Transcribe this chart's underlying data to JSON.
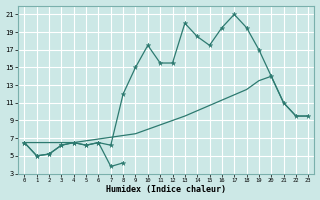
{
  "xlabel": "Humidex (Indice chaleur)",
  "xlim": [
    -0.5,
    23.5
  ],
  "ylim": [
    3,
    22
  ],
  "yticks": [
    3,
    5,
    7,
    9,
    11,
    13,
    15,
    17,
    19,
    21
  ],
  "xticks": [
    0,
    1,
    2,
    3,
    4,
    5,
    6,
    7,
    8,
    9,
    10,
    11,
    12,
    13,
    14,
    15,
    16,
    17,
    18,
    19,
    20,
    21,
    22,
    23
  ],
  "bg_color": "#cce8e6",
  "grid_color": "#ffffff",
  "line_color": "#2d7a70",
  "series_upper": {
    "x": [
      0,
      1,
      2,
      3,
      4,
      5,
      6,
      7,
      8,
      9,
      10,
      11,
      12,
      13,
      14,
      15,
      16,
      17,
      18,
      19,
      20,
      21,
      22,
      23
    ],
    "y": [
      6.5,
      5.0,
      5.2,
      6.2,
      6.5,
      6.2,
      6.5,
      6.2,
      12.0,
      15.0,
      17.5,
      15.5,
      15.5,
      20.0,
      18.5,
      17.5,
      19.5,
      21.0,
      19.5,
      17.0,
      14.0,
      11.0,
      9.5,
      9.5
    ]
  },
  "series_zigzag": {
    "x": [
      0,
      1,
      2,
      3,
      4,
      5,
      6,
      7,
      8
    ],
    "y": [
      6.5,
      5.0,
      5.2,
      6.2,
      6.5,
      6.2,
      6.5,
      3.8,
      4.2
    ]
  },
  "series_lower": {
    "x": [
      0,
      4,
      9,
      13,
      18,
      19,
      20,
      21,
      22,
      23
    ],
    "y": [
      6.5,
      6.5,
      7.5,
      9.5,
      12.5,
      13.5,
      14.0,
      11.0,
      9.5,
      9.5
    ]
  }
}
